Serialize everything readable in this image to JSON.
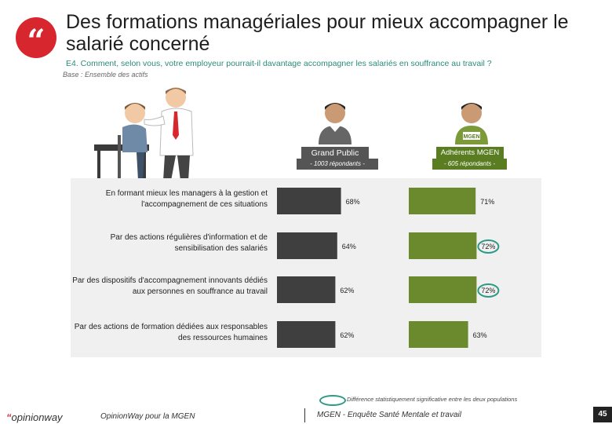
{
  "header": {
    "quote_glyph": "“",
    "title": "Des formations managériales pour mieux accompagner le salarié concerné",
    "question": "E4. Comment, selon vous, votre employeur pourrait-il davantage accompagner les salariés en souffrance au travail ?",
    "base": "Base : Ensemble des actifs"
  },
  "columns": {
    "grand_public": {
      "label": "Grand Public",
      "sub": "- 1003 répondants -"
    },
    "mgen": {
      "label": "Adhérents MGEN",
      "sub": "- 605 répondants -",
      "badge": "MGEN"
    }
  },
  "colors": {
    "grand_public": "#3f3f3f",
    "mgen": "#6b8a2e",
    "highlight": "#2e9a86",
    "accent": "#d8262f"
  },
  "chart_data": {
    "type": "bar",
    "orientation": "horizontal",
    "categories": [
      "En formant mieux les managers à la gestion et l'accompagnement de ces situations",
      "Par des actions régulières d'information et de sensibilisation des salariés",
      "Par des dispositifs d'accompagnement innovants dédiés aux personnes en souffrance au travail",
      "Par des actions de formation dédiées aux responsables des ressources humaines"
    ],
    "series": [
      {
        "name": "Grand Public",
        "values": [
          68,
          64,
          62,
          62
        ],
        "labels": [
          "68%",
          "64%",
          "62%",
          "62%"
        ]
      },
      {
        "name": "Adhérents MGEN",
        "values": [
          71,
          72,
          72,
          63
        ],
        "labels": [
          "71%",
          "72%",
          "72%",
          "63%"
        ],
        "significant": [
          false,
          true,
          true,
          false
        ]
      }
    ],
    "xlim": [
      0,
      100
    ]
  },
  "legend": {
    "text": "Différence statistiquement significative entre les deux populations"
  },
  "footer": {
    "brand_quote": "“",
    "brand": "opinionway",
    "left": "OpinionWay pour la MGEN",
    "right": "MGEN - Enquête Santé Mentale et travail",
    "page": "45"
  }
}
